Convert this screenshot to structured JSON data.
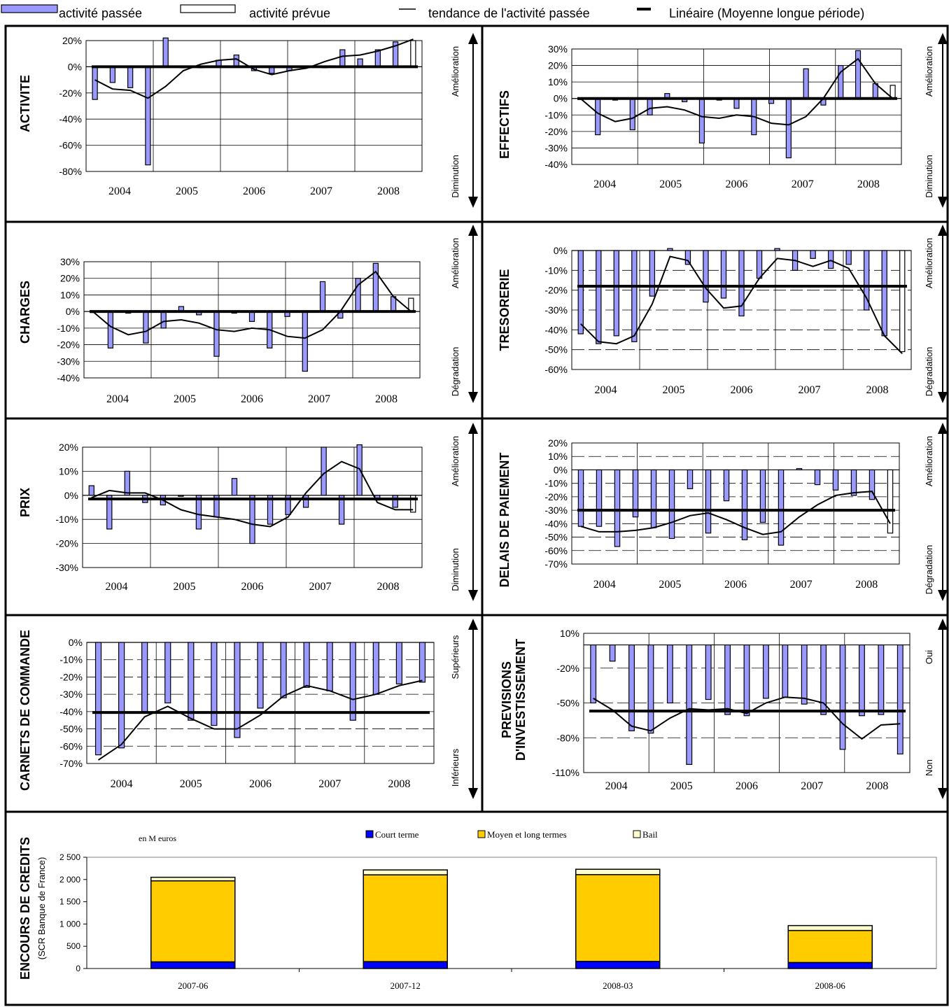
{
  "legend": {
    "past_activity": "activité passée",
    "planned_activity": "activité prévue",
    "trend": "tendance de l'activité passée",
    "long_term": "Linéaire (Moyenne longue période)"
  },
  "x_years": [
    "2004",
    "2005",
    "2006",
    "2007",
    "2008"
  ],
  "chart_data": [
    {
      "type": "bar",
      "id": "activite",
      "title": "ACTIVITE",
      "side_top": "Amélioration",
      "side_bottom": "Diminution",
      "ylim": [
        -80,
        20
      ],
      "yticks": [
        20,
        0,
        -20,
        -40,
        -60,
        -80
      ],
      "tick_suffix": "%",
      "dashed_grid": false,
      "categories": [
        "2004",
        "2005",
        "2006",
        "2007",
        "2008"
      ],
      "bars": [
        -25,
        -12,
        -16,
        -75,
        22,
        0,
        0,
        5,
        9,
        -3,
        -5,
        -3,
        0,
        0,
        13,
        6,
        13,
        19,
        20
      ],
      "forecast": [
        false,
        false,
        false,
        false,
        false,
        false,
        false,
        false,
        false,
        false,
        false,
        false,
        false,
        false,
        false,
        false,
        false,
        false,
        true
      ],
      "trend": [
        -10,
        -17,
        -18,
        -24,
        -15,
        -3,
        2,
        5,
        6,
        -2,
        -6,
        -3,
        -1,
        4,
        8,
        9,
        12,
        16,
        21
      ],
      "long_term": 0
    },
    {
      "type": "bar",
      "id": "effectifs",
      "title": "EFFECTIFS",
      "side_top": "Amélioration",
      "side_bottom": "Diminution",
      "ylim": [
        -40,
        30
      ],
      "yticks": [
        30,
        20,
        10,
        0,
        -10,
        -20,
        -30,
        -40
      ],
      "tick_suffix": "%",
      "dashed_grid": false,
      "categories": [
        "2004",
        "2005",
        "2006",
        "2007",
        "2008"
      ],
      "bars": [
        0,
        -22,
        -1,
        -19,
        -10,
        3,
        -2,
        -27,
        -1,
        -6,
        -22,
        -3,
        -36,
        18,
        -4,
        20,
        29,
        9,
        8
      ],
      "forecast": [
        false,
        false,
        false,
        false,
        false,
        false,
        false,
        false,
        false,
        false,
        false,
        false,
        false,
        false,
        false,
        false,
        false,
        false,
        true
      ],
      "trend": [
        0,
        -9,
        -14,
        -12,
        -6,
        -5,
        -7,
        -11,
        -12,
        -10,
        -11,
        -15,
        -16,
        -11,
        0,
        16,
        24,
        9,
        0
      ],
      "long_term": 0
    },
    {
      "type": "bar",
      "id": "charges",
      "title": "CHARGES",
      "side_top": "Amélioration",
      "side_bottom": "Dégradation",
      "ylim": [
        -40,
        30
      ],
      "yticks": [
        30,
        20,
        10,
        0,
        -10,
        -20,
        -30,
        -40
      ],
      "tick_suffix": "%",
      "dashed_grid": false,
      "categories": [
        "2004",
        "2005",
        "2006",
        "2007",
        "2008"
      ],
      "bars": [
        0,
        -22,
        -1,
        -19,
        -10,
        3,
        -2,
        -27,
        -1,
        -6,
        -22,
        -3,
        -36,
        18,
        -4,
        20,
        29,
        9,
        8
      ],
      "forecast": [
        false,
        false,
        false,
        false,
        false,
        false,
        false,
        false,
        false,
        false,
        false,
        false,
        false,
        false,
        false,
        false,
        false,
        false,
        true
      ],
      "trend": [
        0,
        -9,
        -14,
        -12,
        -6,
        -5,
        -7,
        -11,
        -12,
        -10,
        -11,
        -15,
        -16,
        -11,
        0,
        16,
        24,
        9,
        0
      ],
      "long_term": 0
    },
    {
      "type": "bar",
      "id": "tresorerie",
      "title": "TRESORERIE",
      "side_top": "Amélioration",
      "side_bottom": "Dégradation",
      "ylim": [
        -60,
        0
      ],
      "yticks": [
        0,
        -10,
        -20,
        -30,
        -40,
        -50,
        -60
      ],
      "tick_suffix": "%",
      "dashed_grid": true,
      "categories": [
        "2004",
        "2005",
        "2006",
        "2007",
        "2008"
      ],
      "bars": [
        -42,
        -47,
        -43,
        -46,
        -23,
        1,
        -7,
        -26,
        -24,
        -33,
        -14,
        1,
        -10,
        -4,
        -9,
        -7,
        -30,
        -43,
        -51
      ],
      "forecast": [
        false,
        false,
        false,
        false,
        false,
        false,
        false,
        false,
        false,
        false,
        false,
        false,
        false,
        false,
        false,
        false,
        false,
        false,
        true
      ],
      "trend": [
        -37,
        -46,
        -47,
        -43,
        -27,
        -3,
        -5,
        -19,
        -29,
        -28,
        -14,
        -4,
        -5,
        -8,
        -5,
        -9,
        -24,
        -43,
        -52
      ],
      "long_term": -18
    },
    {
      "type": "bar",
      "id": "prix",
      "title": "PRIX",
      "side_top": "Amélioration",
      "side_bottom": "Diminution",
      "ylim": [
        -30,
        20
      ],
      "yticks": [
        20,
        10,
        0,
        -10,
        -20,
        -30
      ],
      "tick_suffix": "%",
      "dashed_grid": false,
      "categories": [
        "2004",
        "2005",
        "2006",
        "2007",
        "2008"
      ],
      "bars": [
        4,
        -14,
        10,
        -3,
        -4,
        0,
        -14,
        -9,
        7,
        -20,
        -12,
        -8,
        -5,
        20,
        -12,
        21,
        -2,
        -5,
        -7
      ],
      "forecast": [
        false,
        false,
        false,
        false,
        false,
        false,
        false,
        false,
        false,
        false,
        false,
        false,
        false,
        false,
        false,
        false,
        false,
        false,
        true
      ],
      "trend": [
        -1,
        2,
        1,
        1,
        -2,
        -6,
        -8,
        -9,
        -10,
        -12,
        -13,
        -9,
        1,
        9,
        14,
        11,
        -3,
        -6,
        -6
      ],
      "long_term": -1.5
    },
    {
      "type": "bar",
      "id": "delais",
      "title": "DELAIS DE PAIEMENT",
      "side_top": "Amélioration",
      "side_bottom": "Dégradation",
      "ylim": [
        -70,
        20
      ],
      "yticks": [
        20,
        10,
        0,
        -10,
        -20,
        -30,
        -40,
        -50,
        -60,
        -70
      ],
      "tick_suffix": "%",
      "dashed_grid": true,
      "categories": [
        "2004",
        "2005",
        "2006",
        "2007",
        "2008"
      ],
      "bars": [
        -42,
        -42,
        -57,
        -35,
        -43,
        -51,
        -14,
        -47,
        -23,
        -52,
        -39,
        -56,
        1,
        -11,
        -15,
        -19,
        -22,
        -47
      ],
      "forecast": [
        false,
        false,
        false,
        false,
        false,
        false,
        false,
        false,
        false,
        false,
        false,
        false,
        false,
        false,
        false,
        false,
        false,
        true
      ],
      "trend": [
        -42,
        -46,
        -46,
        -45,
        -43,
        -39,
        -34,
        -32,
        -37,
        -43,
        -48,
        -46,
        -35,
        -26,
        -19,
        -17,
        -16,
        -40
      ],
      "long_term": -30
    },
    {
      "type": "bar",
      "id": "carnets",
      "title": "CARNETS DE COMMANDE",
      "side_top": "Supérieurs",
      "side_bottom": "Inférieurs",
      "ylim": [
        -70,
        0
      ],
      "yticks": [
        0,
        -10,
        -20,
        -30,
        -40,
        -50,
        -60,
        -70
      ],
      "tick_suffix": "%",
      "dashed_grid": true,
      "categories": [
        "2004",
        "2005",
        "2006",
        "2007",
        "2008"
      ],
      "bars": [
        -65,
        -61,
        -40,
        -35,
        -45,
        -48,
        -55,
        -38,
        -32,
        -26,
        -28,
        -45,
        -30,
        -24,
        -23
      ],
      "forecast": [
        false,
        false,
        false,
        false,
        false,
        false,
        false,
        false,
        false,
        false,
        false,
        false,
        false,
        false,
        false
      ],
      "trend": [
        -68,
        -59,
        -43,
        -37,
        -44,
        -50,
        -50,
        -42,
        -31,
        -25,
        -28,
        -33,
        -30,
        -25,
        -22
      ],
      "long_term": -40.5
    },
    {
      "type": "bar",
      "id": "previsions",
      "title": [
        "PREVISIONS",
        "D'INVESTISSEMENT"
      ],
      "side_top": "Oui",
      "side_bottom": "Non",
      "ylim": [
        -110,
        10
      ],
      "yticks": [
        10,
        -20,
        -50,
        -80,
        -110
      ],
      "tick_suffix": "%",
      "dashed_grid": true,
      "categories": [
        "2004",
        "2005",
        "2006",
        "2007",
        "2008"
      ],
      "bars": [
        -50,
        -14,
        -74,
        -76,
        -50,
        -103,
        -47,
        -60,
        -61,
        -46,
        -45,
        -51,
        -60,
        -90,
        -61,
        -60,
        -94
      ],
      "forecast": [
        false,
        false,
        false,
        false,
        false,
        false,
        false,
        false,
        false,
        false,
        false,
        false,
        false,
        false,
        false,
        false,
        false
      ],
      "trend": [
        -46,
        -56,
        -70,
        -74,
        -63,
        -55,
        -56,
        -55,
        -59,
        -50,
        -45,
        -46,
        -50,
        -68,
        -81,
        -69,
        -68
      ],
      "long_term": -57
    },
    {
      "type": "bar",
      "id": "encours",
      "title": "ENCOURS DE CREDITS",
      "subtitle": "(SCR Banque de France)",
      "unit": "en M euros",
      "ylim": [
        0,
        2500
      ],
      "yticks": [
        "2 500",
        "2 000",
        "1 500",
        "1 000",
        "500",
        "0"
      ],
      "categories": [
        "2007-06",
        "2007-12",
        "2008-03",
        "2008-06"
      ],
      "series": [
        {
          "name": "Court terme",
          "values": [
            150,
            155,
            160,
            135
          ],
          "color": "#0000ff"
        },
        {
          "name": "Moyen et long termes",
          "values": [
            1820,
            1950,
            1950,
            720
          ],
          "color": "#ffcc00"
        },
        {
          "name": "Bail",
          "values": [
            80,
            110,
            120,
            110
          ],
          "color": "#ffffcc"
        }
      ]
    }
  ]
}
